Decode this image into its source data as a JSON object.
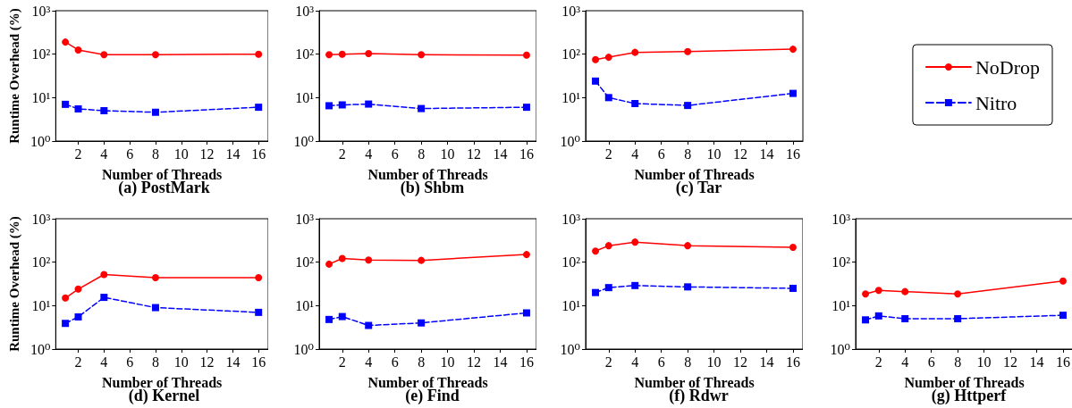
{
  "chart_data": [
    {
      "type": "line",
      "title": "(a) PostMark",
      "xlabel": "Number of Threads",
      "ylabel": "Runtime Overhead (%)",
      "log": "y",
      "legend": false,
      "x": [
        1,
        2,
        4,
        8,
        16
      ],
      "xlim": [
        0.25,
        16.75
      ],
      "xticks": [
        2,
        4,
        6,
        8,
        10,
        12,
        14,
        16
      ],
      "ylim": [
        1,
        1000
      ],
      "yticks": [
        {
          "value": 1,
          "label": "10⁰"
        },
        {
          "value": 10,
          "label": "10¹"
        },
        {
          "value": 100,
          "label": "10²"
        },
        {
          "value": 1000,
          "label": "10³"
        }
      ],
      "series": [
        {
          "color": "#ff0000",
          "marker": "circle",
          "line_style": "solid",
          "values": [
            190,
            125,
            97,
            97,
            100
          ]
        },
        {
          "color": "#0000ff",
          "marker": "square",
          "line_style": "dashed",
          "values": [
            7,
            5.5,
            5,
            4.6,
            6
          ]
        }
      ]
    },
    {
      "type": "line",
      "title": "(b) Shbm",
      "xlabel": "Number of Threads",
      "log": "y",
      "legend": false,
      "x": [
        1,
        2,
        4,
        8,
        16
      ],
      "xlim": [
        0.25,
        16.75
      ],
      "xticks": [
        2,
        4,
        6,
        8,
        10,
        12,
        14,
        16
      ],
      "ylim": [
        1,
        1000
      ],
      "yticks": [
        {
          "value": 1,
          "label": "10⁰"
        },
        {
          "value": 10,
          "label": "10¹"
        },
        {
          "value": 100,
          "label": "10²"
        },
        {
          "value": 1000,
          "label": "10³"
        }
      ],
      "series": [
        {
          "color": "#ff0000",
          "marker": "circle",
          "line_style": "solid",
          "values": [
            97,
            100,
            103,
            97,
            95
          ]
        },
        {
          "color": "#0000ff",
          "marker": "square",
          "line_style": "dashed",
          "values": [
            6.5,
            6.8,
            7.1,
            5.6,
            6
          ]
        }
      ]
    },
    {
      "type": "line",
      "title": "(c) Tar",
      "xlabel": "Number of Threads",
      "log": "y",
      "legend": "right",
      "x": [
        1,
        2,
        4,
        8,
        16
      ],
      "xlim": [
        0.25,
        16.75
      ],
      "xticks": [
        2,
        4,
        6,
        8,
        10,
        12,
        14,
        16
      ],
      "ylim": [
        1,
        1000
      ],
      "yticks": [
        {
          "value": 1,
          "label": "10⁰"
        },
        {
          "value": 10,
          "label": "10¹"
        },
        {
          "value": 100,
          "label": "10²"
        },
        {
          "value": 1000,
          "label": "10³"
        }
      ],
      "series": [
        {
          "name": "NoDrop",
          "color": "#ff0000",
          "marker": "circle",
          "line_style": "solid",
          "values": [
            75,
            85,
            110,
            115,
            130
          ]
        },
        {
          "name": "Nitro",
          "color": "#0000ff",
          "marker": "square",
          "line_style": "dashed",
          "values": [
            24,
            10,
            7.3,
            6.6,
            12.5
          ]
        }
      ]
    },
    {
      "type": "line",
      "title": "(d) Kernel",
      "xlabel": "Number of Threads",
      "ylabel": "Runtime Overhead (%)",
      "log": "y",
      "legend": false,
      "x": [
        1,
        2,
        4,
        8,
        16
      ],
      "xlim": [
        0.25,
        16.75
      ],
      "xticks": [
        2,
        4,
        6,
        8,
        10,
        12,
        14,
        16
      ],
      "ylim": [
        1,
        1000
      ],
      "yticks": [
        {
          "value": 1,
          "label": "10⁰"
        },
        {
          "value": 10,
          "label": "10¹"
        },
        {
          "value": 100,
          "label": "10²"
        },
        {
          "value": 1000,
          "label": "10³"
        }
      ],
      "series": [
        {
          "color": "#ff0000",
          "marker": "circle",
          "line_style": "solid",
          "values": [
            15,
            24,
            52,
            44,
            44
          ]
        },
        {
          "color": "#0000ff",
          "marker": "square",
          "line_style": "dashed",
          "values": [
            3.9,
            5.5,
            15.5,
            9,
            7
          ]
        }
      ]
    },
    {
      "type": "line",
      "title": "(e) Find",
      "xlabel": "Number of Threads",
      "log": "y",
      "legend": false,
      "x": [
        1,
        2,
        4,
        8,
        16
      ],
      "xlim": [
        0.25,
        16.75
      ],
      "xticks": [
        2,
        4,
        6,
        8,
        10,
        12,
        14,
        16
      ],
      "ylim": [
        1,
        1000
      ],
      "yticks": [
        {
          "value": 1,
          "label": "10⁰"
        },
        {
          "value": 10,
          "label": "10¹"
        },
        {
          "value": 100,
          "label": "10²"
        },
        {
          "value": 1000,
          "label": "10³"
        }
      ],
      "series": [
        {
          "color": "#ff0000",
          "marker": "circle",
          "line_style": "solid",
          "values": [
            90,
            122,
            112,
            110,
            150
          ]
        },
        {
          "color": "#0000ff",
          "marker": "square",
          "line_style": "dashed",
          "values": [
            4.8,
            5.6,
            3.5,
            4,
            6.8
          ]
        }
      ]
    },
    {
      "type": "line",
      "title": "(f) Rdwr",
      "xlabel": "Number of Threads",
      "log": "y",
      "legend": false,
      "x": [
        1,
        2,
        4,
        8,
        16
      ],
      "xlim": [
        0.25,
        16.75
      ],
      "xticks": [
        2,
        4,
        6,
        8,
        10,
        12,
        14,
        16
      ],
      "ylim": [
        1,
        1000
      ],
      "yticks": [
        {
          "value": 1,
          "label": "10⁰"
        },
        {
          "value": 10,
          "label": "10¹"
        },
        {
          "value": 100,
          "label": "10²"
        },
        {
          "value": 1000,
          "label": "10³"
        }
      ],
      "series": [
        {
          "color": "#ff0000",
          "marker": "circle",
          "line_style": "solid",
          "values": [
            180,
            240,
            290,
            240,
            220
          ]
        },
        {
          "color": "#0000ff",
          "marker": "square",
          "line_style": "dashed",
          "values": [
            20,
            26,
            29,
            27,
            25
          ]
        }
      ]
    },
    {
      "type": "line",
      "title": "(g) Httperf",
      "xlabel": "Number of Threads",
      "log": "y",
      "legend": false,
      "x": [
        1,
        2,
        4,
        8,
        16
      ],
      "xlim": [
        0.25,
        16.75
      ],
      "xticks": [
        2,
        4,
        6,
        8,
        10,
        12,
        14,
        16
      ],
      "ylim": [
        1,
        1000
      ],
      "yticks": [
        {
          "value": 1,
          "label": "10⁰"
        },
        {
          "value": 10,
          "label": "10¹"
        },
        {
          "value": 100,
          "label": "10²"
        },
        {
          "value": 1000,
          "label": "10³"
        }
      ],
      "series": [
        {
          "color": "#ff0000",
          "marker": "circle",
          "line_style": "solid",
          "values": [
            18.5,
            22.5,
            21,
            18.5,
            37
          ]
        },
        {
          "color": "#0000ff",
          "marker": "square",
          "line_style": "dashed",
          "values": [
            4.7,
            5.8,
            5,
            5,
            6
          ]
        }
      ]
    }
  ]
}
